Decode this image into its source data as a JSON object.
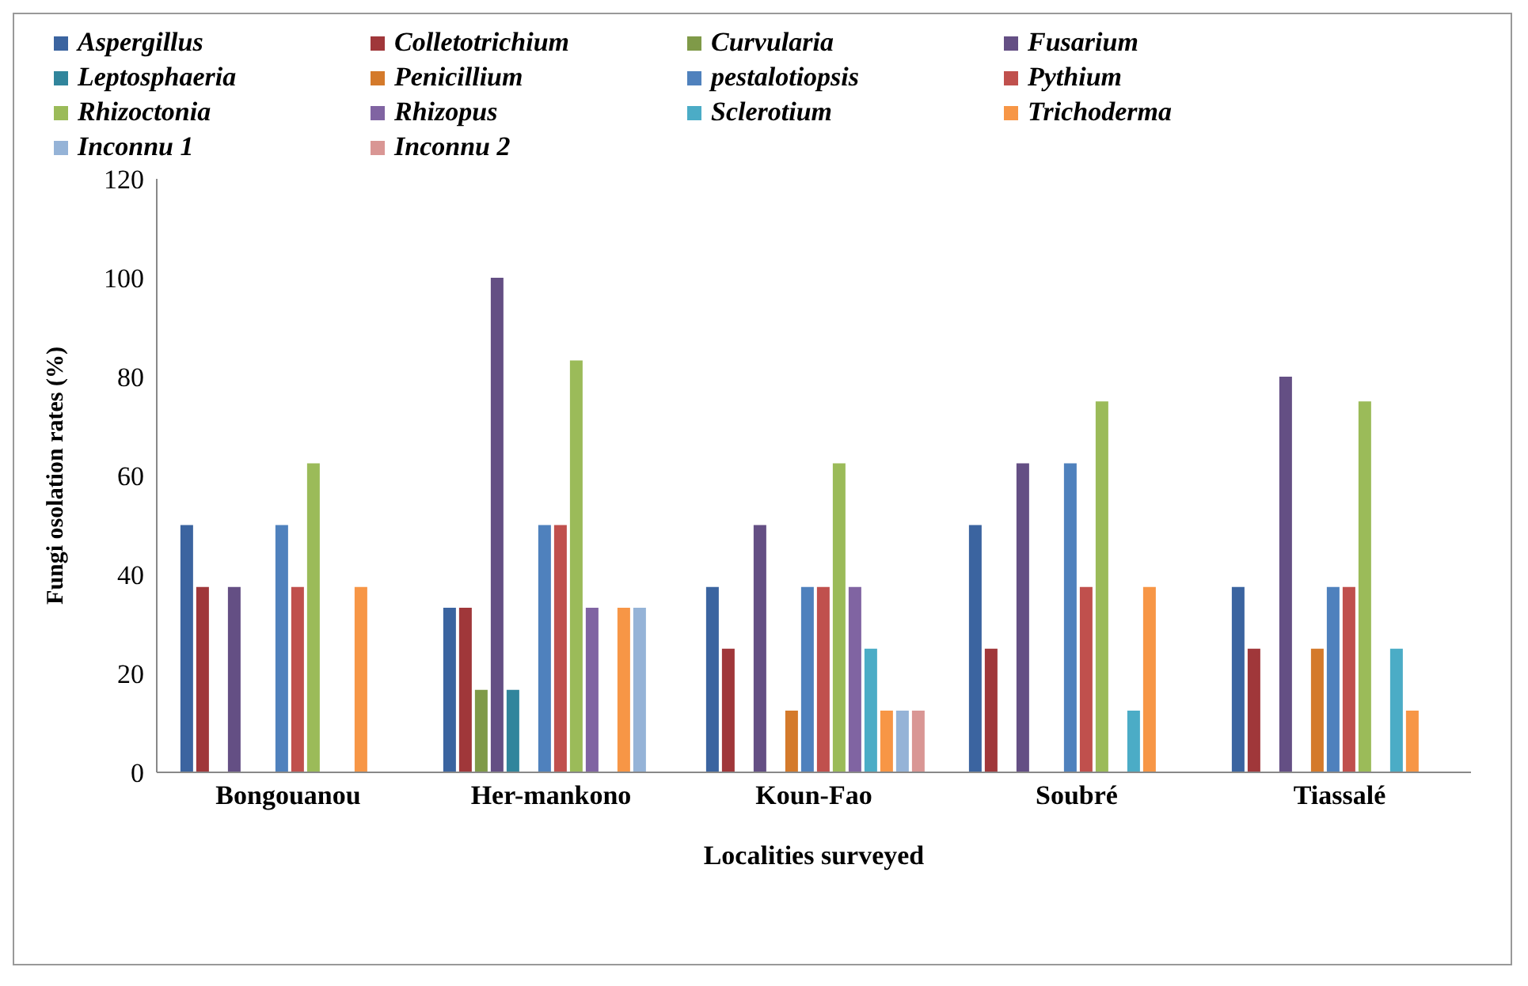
{
  "chart_data": {
    "type": "bar",
    "xlabel": "Localities surveyed",
    "ylabel": "Fungi osolation rates (%)",
    "categories": [
      "Bongouanou",
      "Her-mankono",
      "Koun-Fao",
      "Soubré",
      "Tiassalé"
    ],
    "series": [
      {
        "name": "Aspergillus",
        "color": "#3b64a0",
        "values": [
          50,
          33.3,
          37.5,
          50,
          37.5
        ]
      },
      {
        "name": "Colletotrichium",
        "color": "#a0373a",
        "values": [
          37.5,
          33.3,
          25,
          25,
          25
        ]
      },
      {
        "name": "Curvularia",
        "color": "#7f9a48",
        "values": [
          0,
          16.7,
          0,
          0,
          0
        ]
      },
      {
        "name": "Fusarium",
        "color": "#644f84",
        "values": [
          37.5,
          100,
          50,
          62.5,
          80
        ]
      },
      {
        "name": "Leptosphaeria",
        "color": "#31859c",
        "values": [
          0,
          16.7,
          0,
          0,
          0
        ]
      },
      {
        "name": "Penicillium",
        "color": "#d47a2b",
        "values": [
          0,
          0,
          12.5,
          0,
          25
        ]
      },
      {
        "name": "pestalotiopsis",
        "color": "#4f81bd",
        "values": [
          50,
          50,
          37.5,
          62.5,
          37.5
        ]
      },
      {
        "name": "Pythium",
        "color": "#c0504d",
        "values": [
          37.5,
          50,
          37.5,
          37.5,
          37.5
        ]
      },
      {
        "name": "Rhizoctonia",
        "color": "#9bbb59",
        "values": [
          62.5,
          83.3,
          62.5,
          75,
          75
        ]
      },
      {
        "name": "Rhizopus",
        "color": "#8064a2",
        "values": [
          0,
          33.3,
          37.5,
          0,
          0
        ]
      },
      {
        "name": "Sclerotium",
        "color": "#4bacc6",
        "values": [
          0,
          0,
          25,
          12.5,
          25
        ]
      },
      {
        "name": "Trichoderma",
        "color": "#f79646",
        "values": [
          37.5,
          33.3,
          12.5,
          37.5,
          12.5
        ]
      },
      {
        "name": "Inconnu 1",
        "color": "#95b3d7",
        "values": [
          0,
          33.3,
          12.5,
          0,
          0
        ]
      },
      {
        "name": "Inconnu 2",
        "color": "#d99694",
        "values": [
          0,
          0,
          12.5,
          0,
          0
        ]
      }
    ],
    "ylim": [
      0,
      120
    ],
    "yticks": [
      0,
      20,
      40,
      60,
      80,
      100,
      120
    ],
    "grid": false,
    "legend": "top"
  }
}
